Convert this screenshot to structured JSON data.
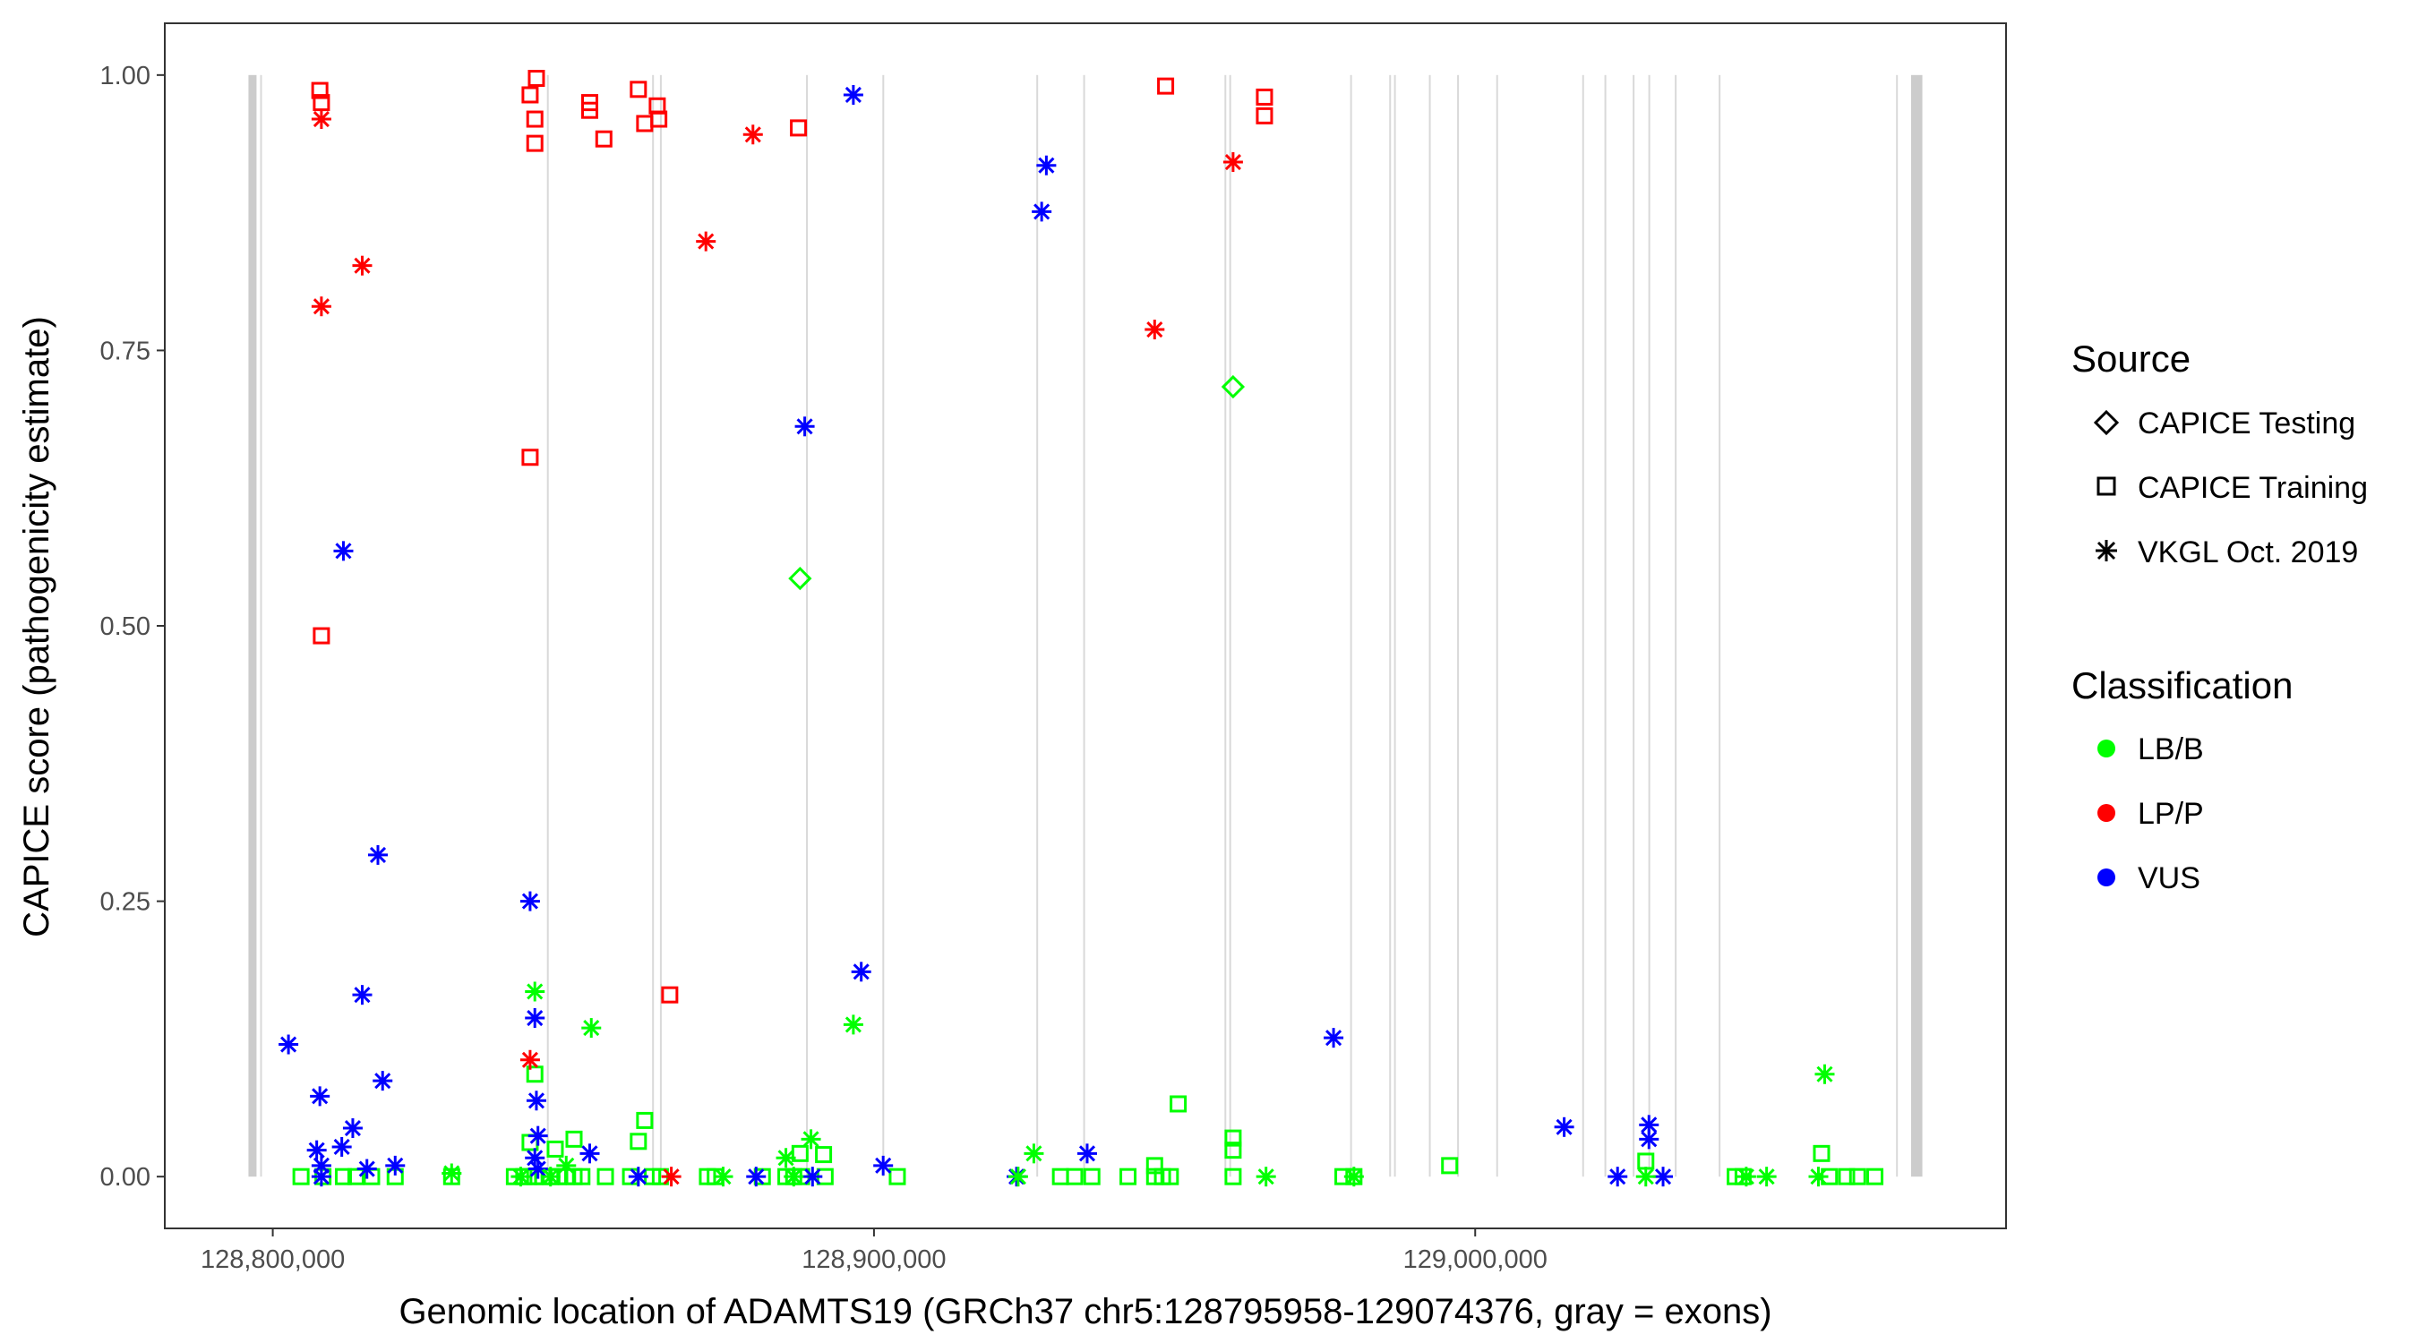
{
  "chart_data": {
    "type": "scatter",
    "title": "",
    "xlabel": "Genomic location of ADAMTS19 (GRCh37 chr5:128795958-129074376, gray = exons)",
    "ylabel": "CAPICE score (pathogenicity estimate)",
    "xlim": [
      128782038,
      129088296
    ],
    "ylim": [
      -0.047,
      1.047
    ],
    "xticks": [
      128800000,
      128900000,
      129000000
    ],
    "xtick_labels": [
      "128,800,000",
      "128,900,000",
      "129,000,000"
    ],
    "yticks": [
      0,
      0.25,
      0.5,
      0.75,
      1.0
    ],
    "ytick_labels": [
      "0.00",
      "0.25",
      "0.50",
      "0.75",
      "1.00"
    ],
    "grid": false,
    "legend_placement": "right",
    "legend": {
      "source_title": "Source",
      "sources": [
        {
          "key": "testing",
          "label": "CAPICE Testing",
          "shape": "diamond"
        },
        {
          "key": "training",
          "label": "CAPICE Training",
          "shape": "square"
        },
        {
          "key": "vkgl",
          "label": "VKGL Oct. 2019",
          "shape": "asterisk"
        }
      ],
      "class_title": "Classification",
      "classes": [
        {
          "key": "LB/B",
          "label": "LB/B",
          "color": "#00ff00"
        },
        {
          "key": "LP/P",
          "label": "LP/P",
          "color": "#ff0000"
        },
        {
          "key": "VUS",
          "label": "VUS",
          "color": "#0000ff"
        }
      ]
    },
    "exons": [
      [
        128795958,
        128797300
      ],
      [
        128797900,
        128798100
      ],
      [
        128845600,
        128845800
      ],
      [
        128863100,
        128863300
      ],
      [
        128864400,
        128864600
      ],
      [
        128888700,
        128888900
      ],
      [
        128901400,
        128901600
      ],
      [
        128927000,
        128927200
      ],
      [
        128934800,
        128935000
      ],
      [
        128958300,
        128958500
      ],
      [
        128959100,
        128959300
      ],
      [
        128979200,
        128979400
      ],
      [
        128985700,
        128985900
      ],
      [
        128986500,
        128986700
      ],
      [
        128992300,
        128992500
      ],
      [
        128997000,
        128997200
      ],
      [
        129003500,
        129003700
      ],
      [
        129017800,
        129018000
      ],
      [
        129021500,
        129021700
      ],
      [
        129026200,
        129026400
      ],
      [
        129028800,
        129029000
      ],
      [
        129033200,
        129033400
      ],
      [
        129040500,
        129040700
      ],
      [
        129070000,
        129070200
      ],
      [
        129072500,
        129074376
      ]
    ],
    "series": [
      {
        "source": "training",
        "class": "LP/P",
        "points": [
          [
            128807830,
            0.986
          ],
          [
            128808090,
            0.975
          ],
          [
            128808090,
            0.491
          ],
          [
            128842800,
            0.982
          ],
          [
            128843850,
            0.997
          ],
          [
            128843590,
            0.96
          ],
          [
            128843590,
            0.938
          ],
          [
            128842800,
            0.653
          ],
          [
            128852720,
            0.975
          ],
          [
            128852720,
            0.968
          ],
          [
            128855070,
            0.942
          ],
          [
            128860810,
            0.987
          ],
          [
            128861860,
            0.956
          ],
          [
            128863950,
            0.972
          ],
          [
            128864210,
            0.96
          ],
          [
            128866030,
            0.165
          ],
          [
            128887440,
            0.952
          ],
          [
            128948510,
            0.99
          ],
          [
            128964950,
            0.98
          ],
          [
            128964950,
            0.963
          ]
        ]
      },
      {
        "source": "vkgl",
        "class": "LP/P",
        "points": [
          [
            128808090,
            0.96
          ],
          [
            128808090,
            0.79
          ],
          [
            128814880,
            0.827
          ],
          [
            128842800,
            0.106
          ],
          [
            128866290,
            0.0
          ],
          [
            128872040,
            0.849
          ],
          [
            128879870,
            0.946
          ],
          [
            128946680,
            0.769
          ],
          [
            128959730,
            0.921
          ]
        ]
      },
      {
        "source": "testing",
        "class": "LB/B",
        "points": [
          [
            128887700,
            0.543
          ],
          [
            128959730,
            0.717
          ]
        ]
      },
      {
        "source": "vkgl",
        "class": "VUS",
        "points": [
          [
            128802610,
            0.12
          ],
          [
            128807830,
            0.073
          ],
          [
            128807310,
            0.024
          ],
          [
            128808090,
            0.01
          ],
          [
            128808090,
            0.0
          ],
          [
            128811480,
            0.027
          ],
          [
            128811750,
            0.568
          ],
          [
            128813310,
            0.044
          ],
          [
            128814880,
            0.165
          ],
          [
            128815660,
            0.007
          ],
          [
            128817490,
            0.292
          ],
          [
            128818270,
            0.087
          ],
          [
            128820360,
            0.01
          ],
          [
            128842800,
            0.25
          ],
          [
            128843590,
            0.144
          ],
          [
            128843850,
            0.069
          ],
          [
            128844110,
            0.037
          ],
          [
            128843590,
            0.017
          ],
          [
            128844110,
            0.007
          ],
          [
            128852720,
            0.021
          ],
          [
            128860810,
            0.0
          ],
          [
            128880390,
            0.0
          ],
          [
            128888480,
            0.681
          ],
          [
            128889780,
            0.0
          ],
          [
            128896570,
            0.982
          ],
          [
            128897880,
            0.186
          ],
          [
            128901530,
            0.01
          ],
          [
            128923710,
            0.0
          ],
          [
            128927890,
            0.876
          ],
          [
            128928670,
            0.918
          ],
          [
            128935460,
            0.021
          ],
          [
            128976440,
            0.126
          ],
          [
            129014800,
            0.045
          ],
          [
            129023680,
            0.0
          ],
          [
            129028900,
            0.047
          ],
          [
            129028900,
            0.034
          ],
          [
            129031250,
            0.0
          ]
        ]
      },
      {
        "source": "training",
        "class": "LB/B",
        "points": [
          [
            128804700,
            0
          ],
          [
            128808350,
            0
          ],
          [
            128811750,
            0
          ],
          [
            128813830,
            0
          ],
          [
            128816440,
            0
          ],
          [
            128820360,
            0
          ],
          [
            128829750,
            0
          ],
          [
            128840190,
            0
          ],
          [
            128841760,
            0
          ],
          [
            128842540,
            0
          ],
          [
            128843590,
            0
          ],
          [
            128844890,
            0
          ],
          [
            128846200,
            0
          ],
          [
            128847500,
            0
          ],
          [
            128848810,
            0
          ],
          [
            128850110,
            0
          ],
          [
            128851420,
            0
          ],
          [
            128855330,
            0
          ],
          [
            128859510,
            0
          ],
          [
            128863160,
            0
          ],
          [
            128864470,
            0
          ],
          [
            128872300,
            0
          ],
          [
            128873600,
            0
          ],
          [
            128881430,
            0
          ],
          [
            128885350,
            0
          ],
          [
            128886650,
            0
          ],
          [
            128887960,
            0
          ],
          [
            128891870,
            0
          ],
          [
            128903880,
            0
          ],
          [
            128931020,
            0
          ],
          [
            128933370,
            0
          ],
          [
            128936240,
            0
          ],
          [
            128942250,
            0
          ],
          [
            128946680,
            0
          ],
          [
            128947990,
            0
          ],
          [
            128949290,
            0
          ],
          [
            128959730,
            0
          ],
          [
            128978000,
            0
          ],
          [
            128979830,
            0
          ],
          [
            129043250,
            0
          ],
          [
            129044560,
            0
          ],
          [
            129058910,
            0
          ],
          [
            129061780,
            0
          ],
          [
            129063610,
            0
          ],
          [
            129066480,
            0
          ],
          [
            128842800,
            0.031
          ],
          [
            128843590,
            0.093
          ],
          [
            128850110,
            0.034
          ],
          [
            128846980,
            0.025
          ],
          [
            128860810,
            0.032
          ],
          [
            128861860,
            0.051
          ],
          [
            128887700,
            0.021
          ],
          [
            128891610,
            0.02
          ],
          [
            128950600,
            0.066
          ],
          [
            128959730,
            0.035
          ],
          [
            128959730,
            0.024
          ],
          [
            128946680,
            0.01
          ],
          [
            128995750,
            0.01
          ],
          [
            129028380,
            0.014
          ],
          [
            129057610,
            0.021
          ]
        ]
      },
      {
        "source": "vkgl",
        "class": "LB/B",
        "points": [
          [
            128829750,
            0.003
          ],
          [
            128843590,
            0.168
          ],
          [
            128852980,
            0.135
          ],
          [
            128841240,
            0
          ],
          [
            128848810,
            0.01
          ],
          [
            128874910,
            0
          ],
          [
            128885350,
            0.017
          ],
          [
            128886650,
            0
          ],
          [
            128889520,
            0.034
          ],
          [
            128896570,
            0.138
          ],
          [
            128923980,
            0
          ],
          [
            128926590,
            0.021
          ],
          [
            128965210,
            0
          ],
          [
            128979830,
            0
          ],
          [
            129028380,
            0
          ],
          [
            129045080,
            0
          ],
          [
            129048470,
            0
          ],
          [
            129057090,
            0
          ],
          [
            129058130,
            0.093
          ],
          [
            128846200,
            0
          ]
        ]
      }
    ]
  }
}
